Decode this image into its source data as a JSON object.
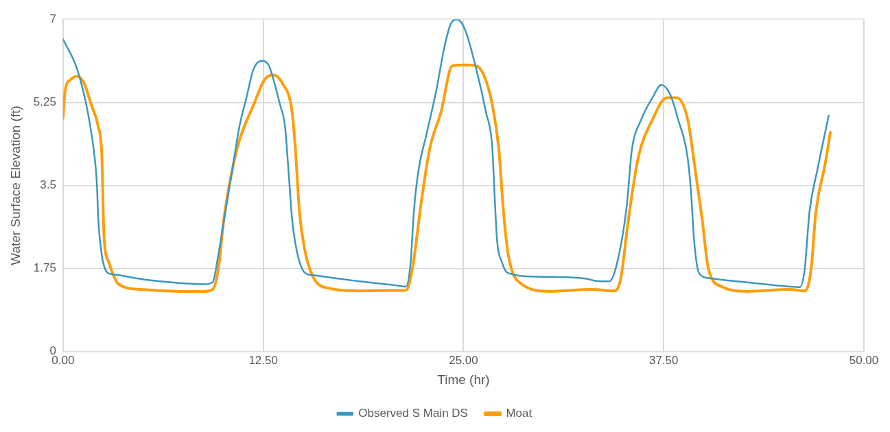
{
  "chart_data": {
    "type": "line",
    "xlabel": "Time (hr)",
    "ylabel": "Water Surface Elevation (ft)",
    "xlim": [
      0,
      50
    ],
    "xticks": [
      {
        "value": 0,
        "label": "0.00"
      },
      {
        "value": 12.5,
        "label": "12.50"
      },
      {
        "value": 25,
        "label": "25.00"
      },
      {
        "value": 37.5,
        "label": "37.50"
      },
      {
        "value": 50,
        "label": "50.00"
      }
    ],
    "ylim": [
      0,
      7
    ],
    "yticks": [
      0,
      1.75,
      3.5,
      5.25,
      7
    ],
    "grid": true,
    "legend": "bottom",
    "marker": "none",
    "line_style": "solid",
    "series": [
      {
        "name": "Observed S Main DS",
        "color": "#3c97bf",
        "x": [
          0,
          0.88,
          1.54,
          1.98,
          2.11,
          2.2,
          2.42,
          2.78,
          3.08,
          5.29,
          7.93,
          8.81,
          9.34,
          9.69,
          10.13,
          10.57,
          11.01,
          11.45,
          11.89,
          12.42,
          12.86,
          13.2,
          13.55,
          13.86,
          14.1,
          14.3,
          14.6,
          15.1,
          15.6,
          18.5,
          20.7,
          21.4,
          21.7,
          21.9,
          22.2,
          22.7,
          23.3,
          23.8,
          24.2,
          24.6,
          25.1,
          25.8,
          26.4,
          26.8,
          26.95,
          27.1,
          27.4,
          27.75,
          29.5,
          32.6,
          33.3,
          34.1,
          34.6,
          35.2,
          35.5,
          36.1,
          36.8,
          37.35,
          37.9,
          38.4,
          38.97,
          39.2,
          39.4,
          39.7,
          40.3,
          42.7,
          45.4,
          46.0,
          46.3,
          46.6,
          47.1,
          47.8
        ],
        "values": [
          6.58,
          5.95,
          5.05,
          4.07,
          3.54,
          2.79,
          2.03,
          1.66,
          1.63,
          1.51,
          1.43,
          1.42,
          1.46,
          2.03,
          2.94,
          3.84,
          4.74,
          5.35,
          5.95,
          6.13,
          6.02,
          5.65,
          5.2,
          4.74,
          3.69,
          2.79,
          2.11,
          1.66,
          1.61,
          1.48,
          1.4,
          1.37,
          1.88,
          2.94,
          3.84,
          4.59,
          5.5,
          6.4,
          6.9,
          7.0,
          6.78,
          5.95,
          5.05,
          4.29,
          3.24,
          2.33,
          1.88,
          1.66,
          1.58,
          1.54,
          1.49,
          1.48,
          1.88,
          3.09,
          4.22,
          4.89,
          5.35,
          5.62,
          5.42,
          4.89,
          4.14,
          3.39,
          2.33,
          1.66,
          1.55,
          1.46,
          1.37,
          1.36,
          1.73,
          2.94,
          3.84,
          4.97
        ]
      },
      {
        "name": "Moat",
        "color": "#ff9e0b",
        "x": [
          0,
          0.13,
          0.44,
          0.88,
          1.32,
          1.76,
          2.2,
          2.42,
          2.55,
          2.86,
          3.44,
          4.85,
          7.5,
          8.8,
          9.34,
          9.69,
          10.04,
          10.48,
          11.0,
          11.9,
          12.56,
          13.1,
          13.7,
          14.3,
          14.5,
          14.76,
          15.07,
          15.6,
          16.7,
          18.5,
          20.7,
          21.4,
          21.8,
          22.4,
          22.9,
          23.6,
          24.3,
          25.1,
          25.8,
          26.3,
          26.8,
          27.2,
          27.5,
          27.8,
          28.6,
          30.4,
          33.0,
          34.4,
          34.8,
          35.3,
          35.9,
          36.8,
          37.7,
          38.3,
          39.0,
          39.4,
          39.9,
          40.3,
          41.2,
          42.7,
          45.4,
          46.3,
          46.7,
          47.0,
          47.6,
          47.9
        ],
        "values": [
          4.92,
          5.5,
          5.72,
          5.8,
          5.65,
          5.2,
          4.74,
          4.14,
          2.48,
          1.88,
          1.43,
          1.31,
          1.27,
          1.27,
          1.31,
          1.73,
          2.79,
          3.69,
          4.44,
          5.2,
          5.72,
          5.83,
          5.65,
          5.05,
          4.29,
          2.94,
          2.18,
          1.58,
          1.33,
          1.28,
          1.29,
          1.29,
          1.73,
          3.24,
          4.29,
          5.05,
          6.02,
          6.04,
          6.02,
          5.8,
          5.2,
          4.29,
          2.94,
          2.03,
          1.43,
          1.27,
          1.31,
          1.28,
          1.51,
          2.79,
          4.07,
          4.89,
          5.35,
          5.35,
          4.89,
          3.99,
          2.79,
          1.73,
          1.36,
          1.27,
          1.31,
          1.28,
          1.73,
          2.94,
          3.99,
          4.62
        ]
      }
    ]
  }
}
